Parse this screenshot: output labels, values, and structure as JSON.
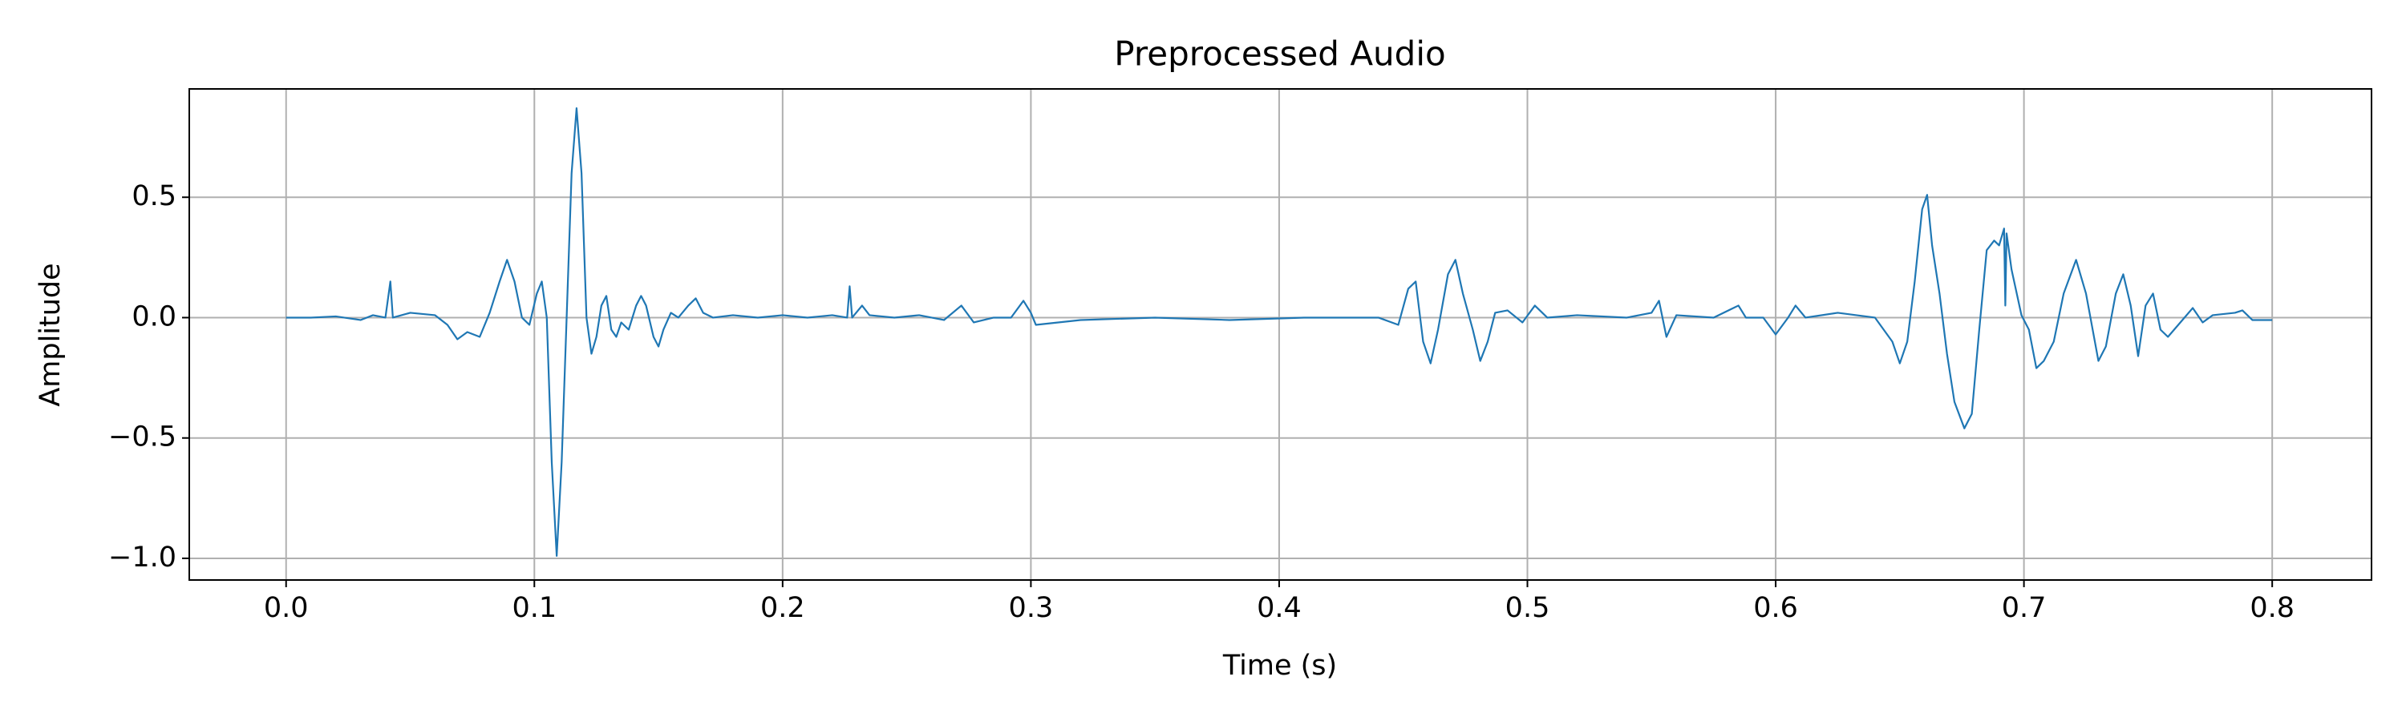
{
  "chart_data": {
    "type": "line",
    "title": "Preprocessed Audio",
    "xlabel": "Time (s)",
    "ylabel": "Amplitude",
    "color": "#1f77b4",
    "grid": true,
    "xlim": [
      -0.039,
      0.84
    ],
    "ylim": [
      -1.09,
      0.95
    ],
    "xticks": [
      {
        "value": 0,
        "label": "0.0"
      },
      0.1,
      0.2,
      0.3,
      0.4,
      0.5,
      0.6,
      0.7,
      0.8
    ],
    "yticks": [
      {
        "value": -1,
        "label": "−1.0"
      },
      {
        "value": -0.5,
        "label": "−0.5"
      },
      {
        "value": 0,
        "label": "0.0"
      },
      0.5
    ],
    "x": [
      0.0,
      0.01,
      0.02,
      0.03,
      0.035,
      0.04,
      0.042,
      0.043,
      0.05,
      0.06,
      0.065,
      0.069,
      0.073,
      0.078,
      0.082,
      0.086,
      0.089,
      0.092,
      0.095,
      0.098,
      0.101,
      0.103,
      0.105,
      0.107,
      0.109,
      0.111,
      0.113,
      0.115,
      0.117,
      0.119,
      0.121,
      0.123,
      0.125,
      0.127,
      0.129,
      0.131,
      0.133,
      0.135,
      0.138,
      0.141,
      0.143,
      0.145,
      0.148,
      0.15,
      0.152,
      0.155,
      0.158,
      0.162,
      0.165,
      0.168,
      0.172,
      0.18,
      0.19,
      0.2,
      0.21,
      0.22,
      0.226,
      0.227,
      0.228,
      0.232,
      0.235,
      0.245,
      0.255,
      0.265,
      0.272,
      0.277,
      0.285,
      0.292,
      0.297,
      0.3,
      0.302,
      0.32,
      0.35,
      0.38,
      0.41,
      0.44,
      0.448,
      0.452,
      0.455,
      0.458,
      0.461,
      0.464,
      0.468,
      0.471,
      0.474,
      0.478,
      0.481,
      0.484,
      0.487,
      0.492,
      0.498,
      0.503,
      0.508,
      0.52,
      0.54,
      0.55,
      0.553,
      0.556,
      0.56,
      0.575,
      0.585,
      0.588,
      0.595,
      0.6,
      0.605,
      0.608,
      0.612,
      0.625,
      0.64,
      0.647,
      0.65,
      0.653,
      0.656,
      0.659,
      0.661,
      0.663,
      0.666,
      0.669,
      0.672,
      0.676,
      0.679,
      0.682,
      0.685,
      0.688,
      0.69,
      0.692,
      0.6925,
      0.693,
      0.695,
      0.699,
      0.702,
      0.705,
      0.708,
      0.712,
      0.716,
      0.721,
      0.725,
      0.73,
      0.733,
      0.737,
      0.74,
      0.743,
      0.746,
      0.749,
      0.752,
      0.755,
      0.758,
      0.763,
      0.768,
      0.772,
      0.776,
      0.785,
      0.788,
      0.792,
      0.8
    ],
    "values": [
      0.0,
      0.0,
      0.005,
      -0.01,
      0.01,
      0.0,
      0.15,
      0.0,
      0.02,
      0.01,
      -0.03,
      -0.09,
      -0.06,
      -0.08,
      0.02,
      0.15,
      0.24,
      0.15,
      0.0,
      -0.03,
      0.1,
      0.15,
      0.0,
      -0.6,
      -0.99,
      -0.6,
      0.0,
      0.6,
      0.87,
      0.6,
      0.0,
      -0.15,
      -0.08,
      0.05,
      0.09,
      -0.05,
      -0.08,
      -0.02,
      -0.05,
      0.05,
      0.09,
      0.05,
      -0.08,
      -0.12,
      -0.05,
      0.02,
      0.0,
      0.05,
      0.08,
      0.02,
      0.0,
      0.01,
      0.0,
      0.01,
      0.0,
      0.01,
      0.0,
      0.13,
      0.0,
      0.05,
      0.01,
      0.0,
      0.01,
      -0.01,
      0.05,
      -0.02,
      0.0,
      0.0,
      0.07,
      0.02,
      -0.03,
      -0.01,
      0.0,
      -0.01,
      0.0,
      0.0,
      -0.03,
      0.12,
      0.15,
      -0.1,
      -0.19,
      -0.05,
      0.18,
      0.24,
      0.1,
      -0.05,
      -0.18,
      -0.1,
      0.02,
      0.03,
      -0.02,
      0.05,
      0.0,
      0.01,
      0.0,
      0.02,
      0.07,
      -0.08,
      0.01,
      0.0,
      0.05,
      0.0,
      0.0,
      -0.07,
      0.0,
      0.05,
      0.0,
      0.02,
      0.0,
      -0.1,
      -0.19,
      -0.1,
      0.15,
      0.45,
      0.51,
      0.3,
      0.1,
      -0.15,
      -0.35,
      -0.46,
      -0.4,
      -0.05,
      0.28,
      0.32,
      0.3,
      0.37,
      0.05,
      0.35,
      0.2,
      0.01,
      -0.05,
      -0.21,
      -0.18,
      -0.1,
      0.1,
      0.24,
      0.1,
      -0.18,
      -0.12,
      0.1,
      0.18,
      0.05,
      -0.16,
      0.05,
      0.1,
      -0.05,
      -0.08,
      -0.02,
      0.04,
      -0.02,
      0.01,
      0.02,
      0.03,
      -0.01,
      -0.01
    ]
  }
}
